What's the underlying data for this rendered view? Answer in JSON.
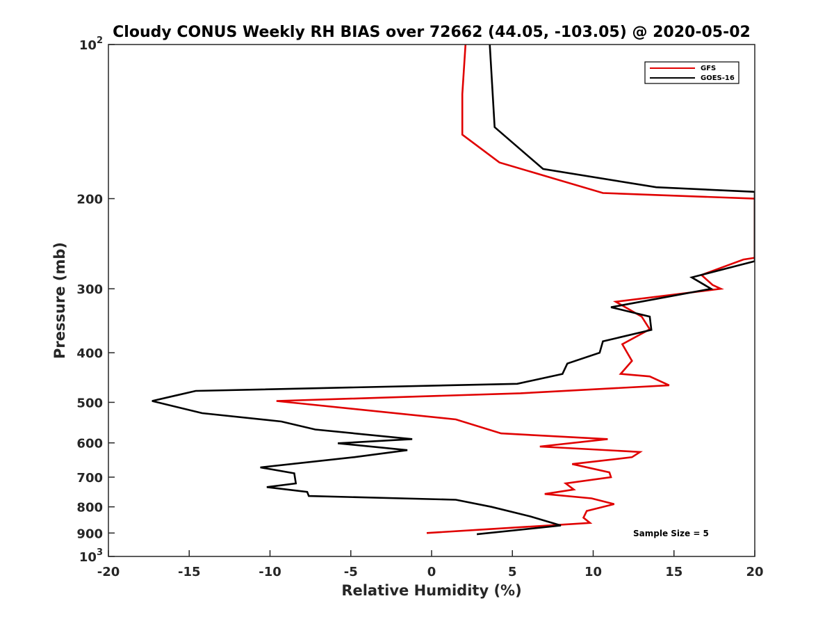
{
  "chart_data": {
    "type": "line",
    "title": "Cloudy CONUS Weekly RH BIAS over 72662 (44.05, -103.05) @ 2020-05-02",
    "xlabel": "Relative Humidity (%)",
    "ylabel": "Pressure (mb)",
    "xlim": [
      -20,
      20
    ],
    "ylim": [
      100,
      1000
    ],
    "y_scale": "log",
    "y_reversed": true,
    "grid": false,
    "legend_position": "top-right",
    "x_ticks": [
      -20,
      -15,
      -10,
      -5,
      0,
      5,
      10,
      15,
      20
    ],
    "x_tick_labels": [
      "-20",
      "-15",
      "-10",
      "-5",
      "0",
      "5",
      "10",
      "15",
      "20"
    ],
    "y_ticks": [
      100,
      200,
      300,
      400,
      500,
      600,
      700,
      800,
      900,
      1000
    ],
    "y_tick_labels": [
      {
        "base": "10",
        "exp": "2"
      },
      {
        "base": "200"
      },
      {
        "base": "300"
      },
      {
        "base": "400"
      },
      {
        "base": "500"
      },
      {
        "base": "600"
      },
      {
        "base": "700"
      },
      {
        "base": "800"
      },
      {
        "base": "900"
      },
      {
        "base": "10",
        "exp": "3"
      }
    ],
    "annotation": "Sample Size = 5",
    "series": [
      {
        "name": "GFS",
        "color": "#e00000",
        "points": [
          [
            2.1,
            100
          ],
          [
            1.9,
            125
          ],
          [
            1.9,
            150
          ],
          [
            4.2,
            170
          ],
          [
            10.6,
            195
          ],
          [
            20.0,
            200
          ],
          [
            20.0,
            261
          ],
          [
            19.3,
            263
          ],
          [
            16.7,
            282
          ],
          [
            17.4,
            295
          ],
          [
            17.9,
            300
          ],
          [
            11.4,
            318
          ],
          [
            13.0,
            340
          ],
          [
            13.5,
            360
          ],
          [
            11.8,
            385
          ],
          [
            12.4,
            415
          ],
          [
            11.7,
            440
          ],
          [
            13.5,
            445
          ],
          [
            14.7,
            463
          ],
          [
            5.5,
            480
          ],
          [
            -9.6,
            497
          ],
          [
            1.5,
            540
          ],
          [
            4.3,
            575
          ],
          [
            10.9,
            590
          ],
          [
            6.7,
            610
          ],
          [
            12.9,
            625
          ],
          [
            12.4,
            640
          ],
          [
            8.7,
            660
          ],
          [
            11.0,
            685
          ],
          [
            11.1,
            700
          ],
          [
            8.3,
            720
          ],
          [
            8.8,
            740
          ],
          [
            7.0,
            755
          ],
          [
            9.9,
            770
          ],
          [
            11.3,
            790
          ],
          [
            9.6,
            815
          ],
          [
            9.4,
            840
          ],
          [
            9.8,
            860
          ],
          [
            -0.3,
            900
          ]
        ]
      },
      {
        "name": "GOES-16",
        "color": "#000000",
        "points": [
          [
            3.6,
            100
          ],
          [
            3.9,
            145
          ],
          [
            6.9,
            175
          ],
          [
            13.9,
            190
          ],
          [
            20.0,
            194
          ],
          [
            20.0,
            265
          ],
          [
            16.1,
            285
          ],
          [
            17.3,
            300
          ],
          [
            11.1,
            326
          ],
          [
            13.5,
            340
          ],
          [
            13.6,
            361
          ],
          [
            10.6,
            380
          ],
          [
            10.4,
            400
          ],
          [
            8.4,
            420
          ],
          [
            8.1,
            440
          ],
          [
            5.3,
            460
          ],
          [
            -14.6,
            475
          ],
          [
            -17.3,
            497
          ],
          [
            -14.2,
            525
          ],
          [
            -9.3,
            545
          ],
          [
            -7.2,
            565
          ],
          [
            -1.2,
            590
          ],
          [
            -5.8,
            601
          ],
          [
            -1.5,
            620
          ],
          [
            -4.8,
            640
          ],
          [
            -10.6,
            670
          ],
          [
            -8.5,
            688
          ],
          [
            -8.4,
            720
          ],
          [
            -10.2,
            732
          ],
          [
            -7.7,
            748
          ],
          [
            -7.6,
            762
          ],
          [
            1.5,
            775
          ],
          [
            3.7,
            800
          ],
          [
            6.1,
            835
          ],
          [
            8.0,
            870
          ],
          [
            2.8,
            905
          ]
        ]
      }
    ]
  }
}
